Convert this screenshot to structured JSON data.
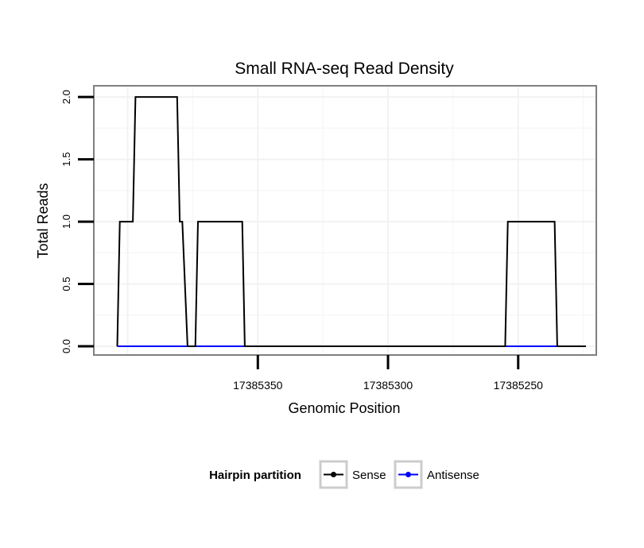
{
  "chart_data": {
    "type": "line",
    "title": "Small RNA-seq Read Density",
    "xlabel": "Genomic Position",
    "ylabel": "Total Reads",
    "x_reversed": true,
    "xlim": [
      17385413,
      17385220
    ],
    "ylim": [
      -0.07,
      2.09
    ],
    "x_ticks": [
      17385350,
      17385300,
      17385250
    ],
    "x_tick_labels": [
      "17385350",
      "17385300",
      "17385250"
    ],
    "y_ticks": [
      0,
      0.5,
      1,
      1.5,
      2
    ],
    "y_tick_labels": [
      "0.0",
      "0.5",
      "1.0",
      "1.5",
      "2.0"
    ],
    "grid": true,
    "legend": {
      "title": "Hairpin partition",
      "placement": "bottom",
      "entries": [
        "Sense",
        "Antisense"
      ]
    },
    "series": [
      {
        "name": "Sense",
        "color": "#000000",
        "x": [
          17385404,
          17385403,
          17385398,
          17385397,
          17385381,
          17385380,
          17385379,
          17385377,
          17385374,
          17385373,
          17385356,
          17385355,
          17385255,
          17385254,
          17385236,
          17385235,
          17385224
        ],
        "y": [
          0,
          1,
          1,
          2,
          2,
          1,
          1,
          0,
          0,
          1,
          1,
          0,
          0,
          1,
          1,
          0,
          0
        ]
      },
      {
        "name": "Antisense",
        "color": "#0000ff",
        "x": [
          17385404,
          17385224
        ],
        "y": [
          0,
          0
        ]
      }
    ]
  }
}
